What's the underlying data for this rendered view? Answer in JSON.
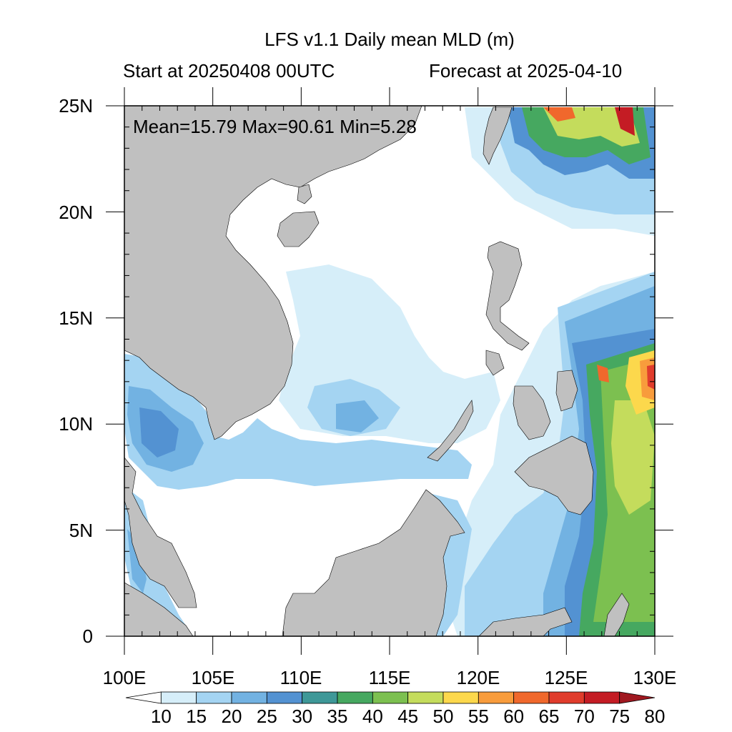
{
  "title": "LFS v1.1 Daily mean MLD (m)",
  "subtitle_left": "Start at 20250408 00UTC",
  "subtitle_right": "Forecast at 2025-04-10",
  "stats": "Mean=15.79  Max=90.61  Min=5.28",
  "map": {
    "lon_range": [
      100,
      130
    ],
    "lat_range": [
      0,
      25
    ],
    "lon_ticks": [
      "100E",
      "105E",
      "110E",
      "115E",
      "120E",
      "125E",
      "130E"
    ],
    "lat_ticks": [
      "0",
      "5N",
      "10N",
      "15N",
      "20N",
      "25N"
    ],
    "land_color": "#c0c0c0"
  },
  "colorbar": {
    "levels": [
      "10",
      "15",
      "20",
      "25",
      "30",
      "35",
      "40",
      "45",
      "50",
      "55",
      "60",
      "65",
      "70",
      "75",
      "80"
    ],
    "colors": [
      "#ffffff",
      "#d6eef9",
      "#a4d4f2",
      "#72b2e2",
      "#5392d2",
      "#3e9898",
      "#46a860",
      "#7cc050",
      "#c4dc5c",
      "#fcd84c",
      "#f89c3c",
      "#f0682c",
      "#e03c2c",
      "#c41c24",
      "#a01820"
    ]
  }
}
